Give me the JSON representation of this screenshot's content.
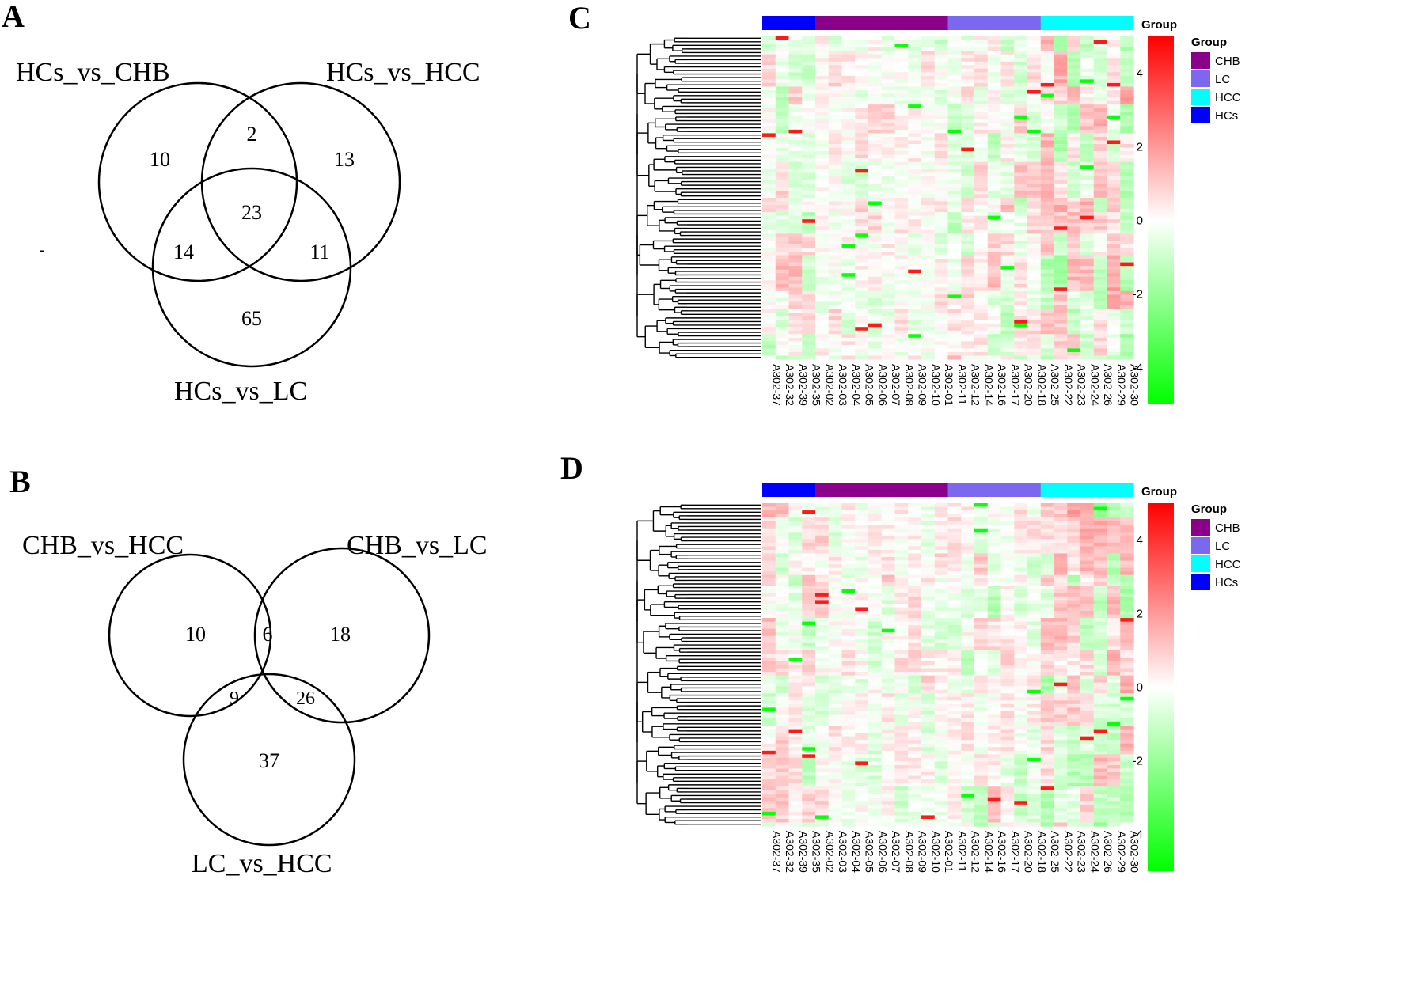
{
  "panels": {
    "A": {
      "letter": "A",
      "sets": [
        "HCs_vs_CHB",
        "HCs_vs_HCC",
        "HCs_vs_LC"
      ],
      "regions": {
        "only_set1": "10",
        "set1_set2": "2",
        "only_set2": "13",
        "all_three": "23",
        "set1_set3": "14",
        "set2_set3": "11",
        "only_set3": "65"
      },
      "stray_mark": "-"
    },
    "B": {
      "letter": "B",
      "sets": [
        "CHB_vs_HCC",
        "CHB_vs_LC",
        "LC_vs_HCC"
      ],
      "regions": {
        "only_set1": "10",
        "set1_set2": "6",
        "only_set2": "18",
        "set1_set3": "9",
        "set2_set3": "26",
        "only_set3": "37"
      }
    },
    "C": {
      "letter": "C",
      "seed": 11
    },
    "D": {
      "letter": "D",
      "seed": 29
    }
  },
  "heatmap_common": {
    "group_bar_label": "Group",
    "legend_title": "Group",
    "legend": [
      {
        "label": "CHB",
        "color": "#8B008B"
      },
      {
        "label": "LC",
        "color": "#7B68EE"
      },
      {
        "label": "HCC",
        "color": "#00FFFF"
      },
      {
        "label": "HCs",
        "color": "#0000FF"
      }
    ],
    "colorbar": {
      "ticks": [
        "4",
        "2",
        "0",
        "-2",
        "-4"
      ],
      "tick_values": [
        4,
        2,
        0,
        -2,
        -4
      ],
      "min": -5,
      "max": 5,
      "colors": [
        "#00FF00",
        "#FFFFFF",
        "#FF0000"
      ]
    },
    "samples": [
      "A302-37",
      "A302-32",
      "A302-39",
      "A302-35",
      "A302-02",
      "A302-03",
      "A302-04",
      "A302-05",
      "A302-06",
      "A302-07",
      "A302-08",
      "A302-09",
      "A302-10",
      "A302-01",
      "A302-11",
      "A302-12",
      "A302-14",
      "A302-16",
      "A302-17",
      "A302-20",
      "A302-18",
      "A302-25",
      "A302-22",
      "A302-23",
      "A302-24",
      "A302-26",
      "A302-29",
      "A302-30"
    ],
    "sample_groups": [
      "HCs",
      "HCs",
      "HCs",
      "HCs",
      "CHB",
      "CHB",
      "CHB",
      "CHB",
      "CHB",
      "CHB",
      "CHB",
      "CHB",
      "CHB",
      "CHB",
      "LC",
      "LC",
      "LC",
      "LC",
      "LC",
      "LC",
      "LC",
      "HCC",
      "HCC",
      "HCC",
      "HCC",
      "HCC",
      "HCC",
      "HCC"
    ],
    "group_colors": {
      "HCs": "#0000FF",
      "CHB": "#8B008B",
      "LC": "#7B68EE",
      "HCC": "#00FFFF"
    }
  }
}
